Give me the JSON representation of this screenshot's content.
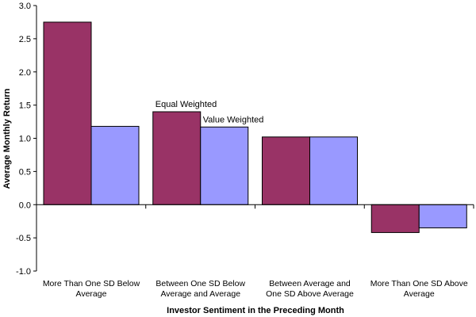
{
  "chart_data": {
    "type": "bar",
    "categories": [
      [
        "More Than One SD Below",
        "Average"
      ],
      [
        "Between One SD Below",
        "Average and Average"
      ],
      [
        "Between Average and",
        "One SD Above Average"
      ],
      [
        "More Than One SD Above",
        "Average"
      ]
    ],
    "series": [
      {
        "name": "Equal Weighted",
        "values": [
          2.75,
          1.4,
          1.02,
          -0.42
        ],
        "color": "#993366"
      },
      {
        "name": "Value Weighted",
        "values": [
          1.18,
          1.17,
          1.02,
          -0.35
        ],
        "color": "#9999FF"
      }
    ],
    "xlabel": "Investor Sentiment in the Preceding Month",
    "ylabel": "Average Monthly Return",
    "ylim": [
      -1.0,
      3.0
    ],
    "yticks": [
      "3.0",
      "2.5",
      "2.0",
      "1.5",
      "1.0",
      "0.5",
      "0.0",
      "-0.5",
      "-1.0"
    ],
    "ytick_values": [
      3.0,
      2.5,
      2.0,
      1.5,
      1.0,
      0.5,
      0.0,
      -0.5,
      -1.0
    ],
    "legend": "none",
    "series_labels_on_group": 1,
    "grid": false
  }
}
